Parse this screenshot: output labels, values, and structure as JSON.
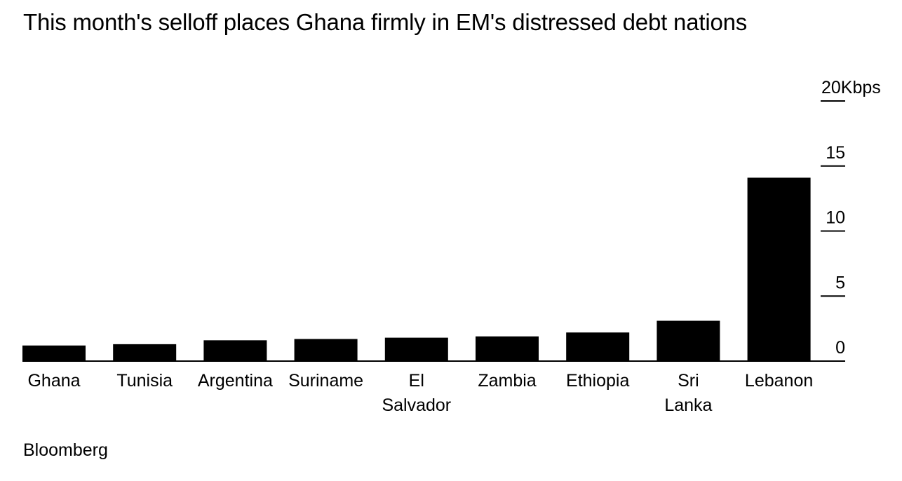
{
  "title": "This month's selloff places Ghana firmly in EM's distressed debt nations",
  "source": "Bloomberg",
  "chart_data": {
    "type": "bar",
    "categories": [
      "Ghana",
      "Tunisia",
      "Argentina",
      "Suriname",
      "El Salvador",
      "Zambia",
      "Ethiopia",
      "Sri Lanka",
      "Lebanon"
    ],
    "category_lines": [
      [
        "Ghana"
      ],
      [
        "Tunisia"
      ],
      [
        "Argentina"
      ],
      [
        "Suriname"
      ],
      [
        "El",
        "Salvador"
      ],
      [
        "Zambia"
      ],
      [
        "Ethiopia"
      ],
      [
        "Sri",
        "Lanka"
      ],
      [
        "Lebanon"
      ]
    ],
    "values": [
      1.2,
      1.3,
      1.6,
      1.7,
      1.8,
      1.9,
      2.2,
      3.1,
      14.1
    ],
    "unit": "Kbps",
    "ylim": [
      0,
      20
    ],
    "yticks": [
      0,
      5,
      10,
      15,
      20
    ],
    "ytick_labels": [
      "0",
      "5",
      "10",
      "15",
      "20"
    ],
    "ytick_unit_label": "Kbps",
    "axis_side": "right",
    "grid": false,
    "bar_color": "#000000"
  }
}
